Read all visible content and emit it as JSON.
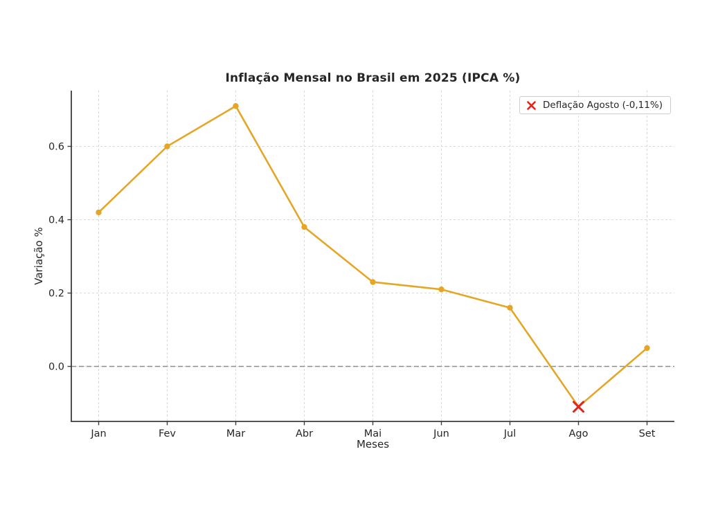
{
  "chart_data": {
    "type": "line",
    "title": "Inflação Mensal no Brasil em 2025 (IPCA %)",
    "xlabel": "Meses",
    "ylabel": "Variação %",
    "categories": [
      "Jan",
      "Fev",
      "Mar",
      "Abr",
      "Mai",
      "Jun",
      "Jul",
      "Ago",
      "Set"
    ],
    "values": [
      0.42,
      0.6,
      0.71,
      0.38,
      0.23,
      0.21,
      0.16,
      -0.11,
      0.05
    ],
    "yticks": [
      0.0,
      0.2,
      0.4,
      0.6
    ],
    "ytick_labels": [
      "0.0",
      "0.2",
      "0.4",
      "0.6"
    ],
    "ylim": [
      -0.15,
      0.75
    ],
    "grid": true,
    "grid_style": "dashed",
    "zero_line": true,
    "legend": {
      "label": "Deflação Agosto (-0,11%)",
      "position": "upper right",
      "marker": "red-x"
    },
    "highlight": {
      "category": "Ago",
      "value": -0.11,
      "marker": "x"
    },
    "colors": {
      "line": "#E5A626",
      "marker": "#E5A626",
      "highlight": "#E1251B",
      "grid": "#D9D9D9",
      "zero_line": "#8C8C8C",
      "spine": "#3B3B3B",
      "text": "#262626"
    }
  }
}
